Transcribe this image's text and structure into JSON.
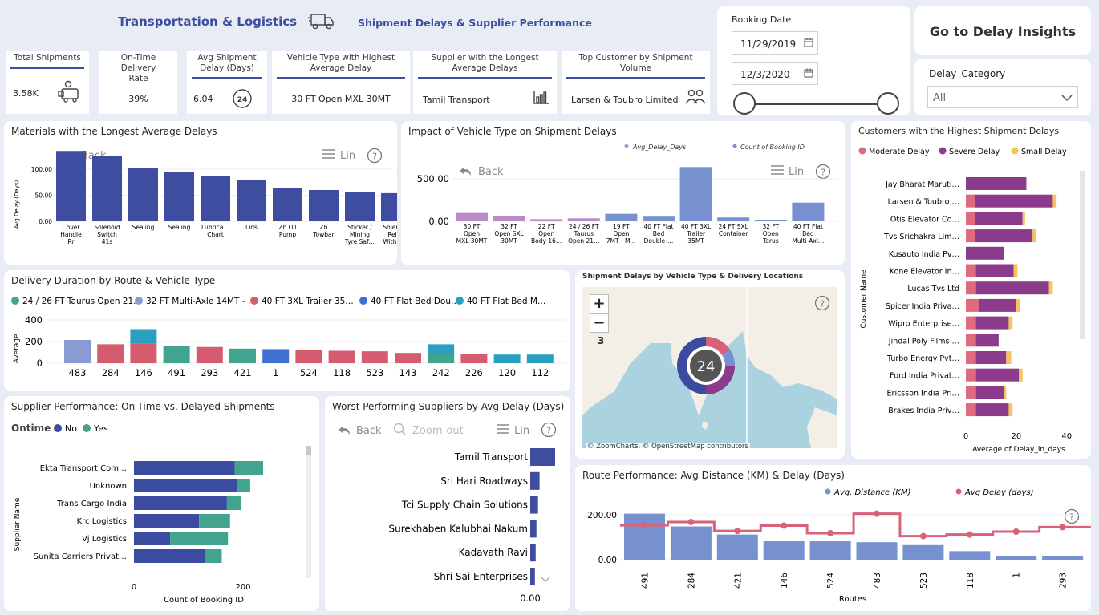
{
  "header": {
    "title": "Transportation & Logistics",
    "subtitle": "Shipment Delays & Supplier Performance"
  },
  "kpis": {
    "total_shipments": {
      "label": "Total Shipments",
      "value": "3.58K"
    },
    "ontime_rate": {
      "label": "On-Time Delivery Rate",
      "value": "39%"
    },
    "avg_delay": {
      "label": "Avg Shipment Delay (Days)",
      "value": "6.04",
      "icon_text": "24"
    },
    "vehicle_highest": {
      "label": "Vehicle Type with Highest Average Delay",
      "value": "30 FT Open MXL 30MT"
    },
    "supplier_longest": {
      "label": "Supplier with the Longest Average Delays",
      "value": "Tamil Transport"
    },
    "top_customer": {
      "label": "Top Customer by Shipment Volume",
      "value": "Larsen & Toubro Limited"
    }
  },
  "booking": {
    "label": "Booking Date",
    "start": "11/29/2019",
    "end": "12/3/2020",
    "slider_start": 0,
    "slider_end": 1
  },
  "nav_button": {
    "label": "Go to Delay Insights"
  },
  "delay_category": {
    "label": "Delay_Category",
    "value": "All"
  },
  "visual_controls": {
    "back": "Back",
    "lin": "Lin",
    "zoom_out": "Zoom-out",
    "help": "?"
  },
  "materials": {
    "title": "Materials with the Longest Average Delays",
    "chart_data": {
      "type": "bar",
      "ylabel": "Avg Delay (Days)",
      "ylim": [
        0,
        140
      ],
      "yticks": [
        "100.00",
        "50.00",
        "0.00"
      ],
      "categories": [
        [
          "Cover",
          "Handle",
          "Rr"
        ],
        [
          "Solenoid",
          "Switch",
          "41s"
        ],
        [
          "Sealing"
        ],
        [
          "Sealing"
        ],
        [
          "Lubrica…",
          "Chart"
        ],
        [
          "Lids"
        ],
        [
          "Zb Oil",
          "Pump"
        ],
        [
          "Zb",
          "Towbar"
        ],
        [
          "Sticker /",
          "Mining",
          "Tyre Saf…"
        ],
        [
          "Solenoid",
          "Relay",
          "With C…"
        ]
      ],
      "values": [
        135,
        126,
        102,
        94,
        87,
        79,
        64,
        60,
        56,
        54
      ],
      "color": "#3e4da0"
    }
  },
  "vehicle_impact": {
    "title": "Impact of Vehicle Type on Shipment Delays",
    "chart_data": {
      "type": "bar",
      "series": [
        {
          "name": "Avg_Delay_Days",
          "color": "#b98ac8"
        },
        {
          "name": "Count of Booking ID",
          "color": "#7791d0"
        }
      ],
      "yticks": [
        "500.00",
        "0.00"
      ],
      "ylim": [
        0,
        700
      ],
      "categories": [
        [
          "30 FT",
          "Open",
          "MXL 30MT"
        ],
        [
          "32 FT",
          "Open SXL",
          "30MT"
        ],
        [
          "22 FT",
          "Open",
          "Body 16…"
        ],
        [
          "24 / 26 FT",
          "Taurus",
          "Open 21…"
        ],
        [
          "19 FT",
          "Open",
          "7MT - M…"
        ],
        [
          "40 FT Flat",
          "Bed",
          "Double-…"
        ],
        [
          "40 FT 3XL",
          "Trailer",
          "35MT"
        ],
        [
          "24 FT SXL",
          "Container"
        ],
        [
          "32 FT",
          "Open",
          "Tarus"
        ],
        [
          "40 FT Flat",
          "Bed",
          "Multi-Axl…"
        ]
      ],
      "values": [
        98,
        60,
        25,
        35,
        88,
        55,
        640,
        45,
        15,
        220
      ],
      "value_series": [
        0,
        0,
        0,
        0,
        1,
        1,
        1,
        1,
        1,
        1
      ]
    }
  },
  "customers": {
    "title": "Customers with the Highest Shipment Delays",
    "legend": [
      {
        "name": "Moderate Delay",
        "color": "#e06a7d"
      },
      {
        "name": "Severe Delay",
        "color": "#8c3a8c"
      },
      {
        "name": "Small Delay",
        "color": "#f4c55f"
      }
    ],
    "chart_data": {
      "type": "bar",
      "xlabel": "Average of Delay_in_days",
      "ylabel": "Customer Name",
      "xticks": [
        "0",
        "20",
        "40"
      ],
      "xlim": [
        0,
        42
      ],
      "categories": [
        "Jay Bharat Maruti…",
        "Larsen & Toubro …",
        "Otis Elevator Co…",
        "Tvs Srichakra Lim…",
        "Kusauto India Pv…",
        "Kone Elevator In…",
        "Lucas Tvs Ltd",
        "Spicer India Priva…",
        "Wipro Enterprise…",
        "Jindal Poly Films …",
        "Turbo Energy Pvt…",
        "Ford India Privat…",
        "Ericsson India Pri…",
        "Brakes India Priv…"
      ],
      "series": [
        {
          "name": "Moderate Delay",
          "values": [
            0,
            3.5,
            3.5,
            3.5,
            0,
            4,
            4,
            5,
            4,
            4,
            4,
            4,
            4,
            4
          ]
        },
        {
          "name": "Severe Delay",
          "values": [
            24,
            31,
            19,
            23,
            15,
            15,
            29,
            15,
            13,
            9,
            12,
            17,
            11,
            13
          ]
        },
        {
          "name": "Small Delay",
          "values": [
            0,
            1.5,
            1,
            1.5,
            0,
            1.5,
            1.5,
            1.5,
            1.5,
            0,
            2,
            1.5,
            1,
            1.5
          ]
        }
      ]
    }
  },
  "duration": {
    "title": "Delivery Duration by Route & Vehicle Type",
    "legend": [
      {
        "name": "24 / 26 FT Taurus Open 21…",
        "color": "#40a48e"
      },
      {
        "name": "32 FT Multi-Axle 14MT - …",
        "color": "#8a9bd4"
      },
      {
        "name": "40 FT 3XL Trailer 35…",
        "color": "#d55c6f"
      },
      {
        "name": "40 FT Flat Bed Dou…",
        "color": "#3f6fd0"
      },
      {
        "name": "40 FT Flat Bed M…",
        "color": "#2aa0c0"
      }
    ],
    "chart_data": {
      "type": "bar",
      "ylabel": "Average …",
      "yticks": [
        "400",
        "200",
        "0"
      ],
      "ylim": [
        0,
        450
      ],
      "categories": [
        "483",
        "284",
        "146",
        "491",
        "293",
        "421",
        "1",
        "524",
        "118",
        "523",
        "143",
        "242",
        "226",
        "120",
        "112"
      ],
      "segments": [
        [
          {
            "s": 1,
            "v": 215
          }
        ],
        [
          {
            "s": 2,
            "v": 175
          }
        ],
        [
          {
            "s": 2,
            "v": 180
          },
          {
            "s": 4,
            "v": 135
          }
        ],
        [
          {
            "s": 0,
            "v": 160
          }
        ],
        [
          {
            "s": 2,
            "v": 150
          }
        ],
        [
          {
            "s": 0,
            "v": 135
          }
        ],
        [
          {
            "s": 3,
            "v": 130
          }
        ],
        [
          {
            "s": 2,
            "v": 125
          }
        ],
        [
          {
            "s": 2,
            "v": 115
          }
        ],
        [
          {
            "s": 2,
            "v": 110
          }
        ],
        [
          {
            "s": 2,
            "v": 95
          }
        ],
        [
          {
            "s": 0,
            "v": 85
          },
          {
            "s": 4,
            "v": 90
          }
        ],
        [
          {
            "s": 2,
            "v": 85
          }
        ],
        [
          {
            "s": 4,
            "v": 80
          }
        ],
        [
          {
            "s": 4,
            "v": 80
          }
        ]
      ]
    }
  },
  "map": {
    "title": "Shipment Delays by Vehicle Type & Delivery Locations",
    "zoom_in": "+",
    "zoom_out": "−",
    "level": "3",
    "cluster_count": "24",
    "attribution": "© ZoomCharts, © OpenStreetMap contributors"
  },
  "supplier_perf": {
    "title": "Supplier Performance: On-Time vs. Delayed Shipments",
    "legend_title": "Ontime",
    "legend": [
      {
        "name": "No",
        "color": "#3a4ba0"
      },
      {
        "name": "Yes",
        "color": "#42a48e"
      }
    ],
    "chart_data": {
      "type": "bar",
      "xlabel": "Count of Booking ID",
      "ylabel": "Supplier Name",
      "xticks": [
        "0",
        "200"
      ],
      "xlim": [
        0,
        330
      ],
      "categories": [
        "Ekta Transport Com…",
        "Unknown",
        "Trans Cargo India",
        "Krc Logistics",
        "Vj Logistics",
        "Sunita Carriers Privat…"
      ],
      "series": [
        {
          "name": "No",
          "values": [
            195,
            200,
            180,
            126,
            70,
            138
          ]
        },
        {
          "name": "Yes",
          "values": [
            55,
            25,
            28,
            60,
            112,
            32
          ]
        }
      ]
    }
  },
  "worst_suppliers": {
    "title": "Worst Performing Suppliers by Avg Delay (Days)",
    "chart_data": {
      "type": "bar",
      "xticks": [
        "0.00"
      ],
      "categories": [
        "Tamil Transport",
        "Sri Hari Roadways",
        "Tci Supply Chain Solutions",
        "Surekhaben Kalubhai Nakum",
        "Kadavath Ravi",
        "Shri Sai Enterprises"
      ],
      "values": [
        32,
        12,
        10,
        8,
        7,
        6
      ],
      "xlim": [
        0,
        34
      ],
      "color": "#3e4da0"
    }
  },
  "route_perf": {
    "title": "Route Performance: Avg Distance (KM) & Delay (Days)",
    "legend": [
      {
        "name": "Avg. Distance (KM)",
        "color": "#7791d0"
      },
      {
        "name": "Avg Delay (days)",
        "color": "#d8627a"
      }
    ],
    "chart_data": {
      "type": "bar",
      "xlabel": "Routes",
      "yticks": [
        "200.00",
        "0.00"
      ],
      "ylim": [
        0,
        230
      ],
      "categories": [
        "491",
        "284",
        "421",
        "146",
        "524",
        "483",
        "523",
        "118",
        "1",
        "293"
      ],
      "distance": [
        205,
        148,
        112,
        82,
        82,
        78,
        65,
        38,
        15,
        15
      ],
      "delay": [
        153,
        168,
        128,
        152,
        118,
        205,
        105,
        112,
        125,
        145
      ]
    }
  }
}
